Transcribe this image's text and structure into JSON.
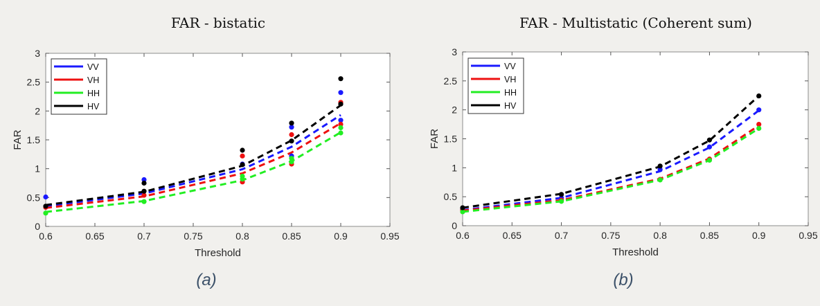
{
  "chart_data": [
    {
      "type": "line",
      "title": "FAR - bistatic",
      "xlabel": "Threshold",
      "ylabel": "FAR",
      "caption": "(a)",
      "xlim": [
        0.6,
        0.95
      ],
      "ylim": [
        0,
        3
      ],
      "xticks": [
        0.6,
        0.65,
        0.7,
        0.75,
        0.8,
        0.85,
        0.9,
        0.95
      ],
      "xtick_labels": [
        "0.6",
        "0.65",
        "0.7",
        "0.75",
        "0.8",
        "0.85",
        "0.9",
        "0.95"
      ],
      "yticks": [
        0,
        0.5,
        1,
        1.5,
        2,
        2.5,
        3
      ],
      "ytick_labels": [
        "0",
        "0.5",
        "1",
        "1.5",
        "2",
        "2.5",
        "3"
      ],
      "grid": false,
      "legend_position": "top-left",
      "x": [
        0.6,
        0.7,
        0.8,
        0.85,
        0.9
      ],
      "series": [
        {
          "name": "VV",
          "color": "#1a1aff",
          "fit": [
            0.35,
            0.57,
            0.99,
            1.38,
            1.93
          ],
          "points": [
            [
              0.6,
              0.51
            ],
            [
              0.7,
              0.81
            ],
            [
              0.8,
              1.08
            ],
            [
              0.85,
              1.72
            ],
            [
              0.85,
              1.22
            ],
            [
              0.9,
              2.32
            ],
            [
              0.9,
              1.84
            ]
          ]
        },
        {
          "name": "VH",
          "color": "#ee1111",
          "fit": [
            0.32,
            0.52,
            0.92,
            1.28,
            1.79
          ],
          "points": [
            [
              0.6,
              0.33
            ],
            [
              0.7,
              0.54
            ],
            [
              0.8,
              1.22
            ],
            [
              0.8,
              0.77
            ],
            [
              0.85,
              1.59
            ],
            [
              0.85,
              1.08
            ],
            [
              0.9,
              2.15
            ],
            [
              0.9,
              1.77
            ]
          ]
        },
        {
          "name": "HH",
          "color": "#22ee22",
          "fit": [
            0.25,
            0.44,
            0.8,
            1.13,
            1.63
          ],
          "points": [
            [
              0.6,
              0.23
            ],
            [
              0.7,
              0.43
            ],
            [
              0.8,
              0.82
            ],
            [
              0.8,
              0.87
            ],
            [
              0.85,
              1.12
            ],
            [
              0.85,
              1.18
            ],
            [
              0.9,
              1.62
            ],
            [
              0.9,
              1.71
            ]
          ]
        },
        {
          "name": "HV",
          "color": "#000000",
          "fit": [
            0.37,
            0.6,
            1.05,
            1.49,
            2.1
          ],
          "points": [
            [
              0.6,
              0.35
            ],
            [
              0.7,
              0.61
            ],
            [
              0.7,
              0.75
            ],
            [
              0.8,
              1.32
            ],
            [
              0.8,
              1.07
            ],
            [
              0.85,
              1.79
            ],
            [
              0.85,
              1.48
            ],
            [
              0.9,
              2.56
            ],
            [
              0.9,
              2.12
            ]
          ]
        }
      ]
    },
    {
      "type": "line",
      "title": "FAR - Multistatic (Coherent sum)",
      "xlabel": "Threshold",
      "ylabel": "FAR",
      "caption": "(b)",
      "xlim": [
        0.6,
        0.95
      ],
      "ylim": [
        0,
        3
      ],
      "xticks": [
        0.6,
        0.65,
        0.7,
        0.75,
        0.8,
        0.85,
        0.9,
        0.95
      ],
      "xtick_labels": [
        "0.6",
        "0.65",
        "0.7",
        "0.75",
        "0.8",
        "0.85",
        "0.9",
        "0.95"
      ],
      "yticks": [
        0,
        0.5,
        1,
        1.5,
        2,
        2.5,
        3
      ],
      "ytick_labels": [
        "0",
        "0.5",
        "1",
        "1.5",
        "2",
        "2.5",
        "3"
      ],
      "grid": false,
      "legend_position": "top-left",
      "x": [
        0.6,
        0.7,
        0.8,
        0.85,
        0.9
      ],
      "series": [
        {
          "name": "VV",
          "color": "#1a1aff",
          "fit": [
            0.27,
            0.48,
            0.94,
            1.35,
            1.99
          ],
          "points": [
            [
              0.6,
              0.28
            ],
            [
              0.7,
              0.48
            ],
            [
              0.8,
              0.97
            ],
            [
              0.85,
              1.36
            ],
            [
              0.9,
              2.0
            ]
          ]
        },
        {
          "name": "VH",
          "color": "#ee1111",
          "fit": [
            0.26,
            0.44,
            0.81,
            1.16,
            1.73
          ],
          "points": [
            [
              0.6,
              0.27
            ],
            [
              0.7,
              0.44
            ],
            [
              0.8,
              0.8
            ],
            [
              0.85,
              1.15
            ],
            [
              0.9,
              1.75
            ]
          ]
        },
        {
          "name": "HH",
          "color": "#22ee22",
          "fit": [
            0.24,
            0.42,
            0.79,
            1.13,
            1.68
          ],
          "points": [
            [
              0.6,
              0.24
            ],
            [
              0.7,
              0.42
            ],
            [
              0.8,
              0.79
            ],
            [
              0.85,
              1.13
            ],
            [
              0.9,
              1.68
            ]
          ]
        },
        {
          "name": "HV",
          "color": "#000000",
          "fit": [
            0.31,
            0.55,
            1.02,
            1.47,
            2.24
          ],
          "points": [
            [
              0.6,
              0.31
            ],
            [
              0.7,
              0.54
            ],
            [
              0.8,
              1.03
            ],
            [
              0.85,
              1.48
            ],
            [
              0.9,
              2.24
            ]
          ]
        }
      ]
    }
  ]
}
